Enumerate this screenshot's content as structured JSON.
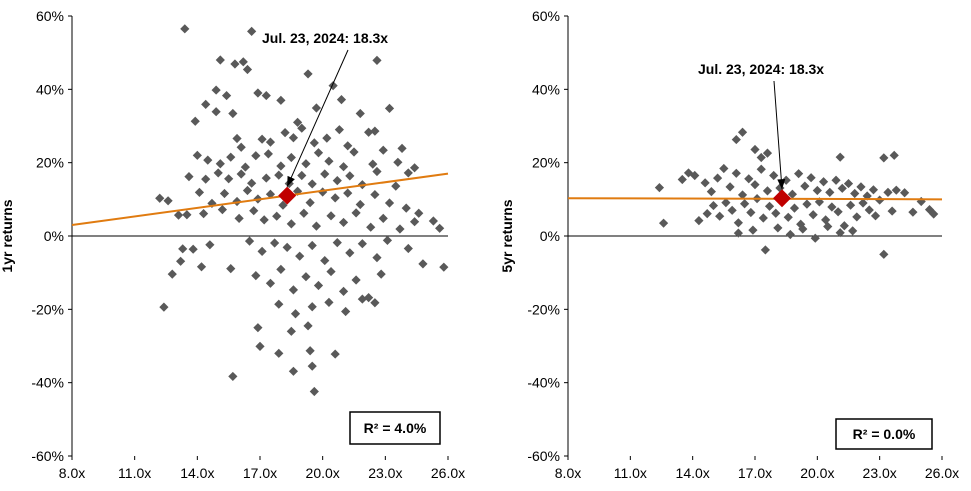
{
  "chart_data": [
    {
      "type": "scatter",
      "ylabel": "1yr returns",
      "x_ticks": [
        "8.0x",
        "11.0x",
        "14.0x",
        "17.0x",
        "20.0x",
        "23.0x",
        "26.0x"
      ],
      "y_ticks": [
        "60%",
        "40%",
        "20%",
        "0%",
        "-20%",
        "-40%",
        "-60%"
      ],
      "xlim": [
        8,
        26
      ],
      "ylim": [
        -60,
        60
      ],
      "grid": false,
      "annotation": {
        "text": "Jul. 23, 2024: 18.3x",
        "x": 18.3,
        "y": 11
      },
      "r_squared_label": "R² = 4.0%",
      "trendline": [
        [
          8,
          3.0
        ],
        [
          26,
          17.0
        ]
      ],
      "colors": {
        "points": "#595959",
        "highlight": "#c00000",
        "trendline": "#e07b10"
      },
      "points": [
        [
          13.4,
          56.5
        ],
        [
          16.6,
          55.8
        ],
        [
          15.1,
          48
        ],
        [
          15.8,
          46.9
        ],
        [
          16.2,
          47.5
        ],
        [
          16.4,
          45.4
        ],
        [
          19.3,
          44.2
        ],
        [
          22.6,
          47.9
        ],
        [
          20.5,
          41
        ],
        [
          14.9,
          39.8
        ],
        [
          15.4,
          38.3
        ],
        [
          14.4,
          35.9
        ],
        [
          14.9,
          33.9
        ],
        [
          13.9,
          31.3
        ],
        [
          15.7,
          33.4
        ],
        [
          16.9,
          39
        ],
        [
          17.3,
          38.3
        ],
        [
          18.0,
          37.0
        ],
        [
          18.8,
          31.0
        ],
        [
          19.7,
          34.9
        ],
        [
          20.9,
          37.2
        ],
        [
          21.8,
          33.4
        ],
        [
          23.2,
          34.8
        ],
        [
          23.8,
          23.9
        ],
        [
          22.5,
          28.6
        ],
        [
          15.9,
          26.6
        ],
        [
          16.1,
          24.2
        ],
        [
          17.1,
          26.4
        ],
        [
          17.5,
          25.6
        ],
        [
          18.2,
          28.2
        ],
        [
          18.6,
          26.8
        ],
        [
          19.0,
          29.4
        ],
        [
          19.6,
          25.4
        ],
        [
          20.2,
          26.7
        ],
        [
          20.8,
          29.0
        ],
        [
          21.2,
          24.6
        ],
        [
          22.2,
          28.3
        ],
        [
          22.9,
          23.4
        ],
        [
          14.0,
          22.0
        ],
        [
          14.5,
          20.7
        ],
        [
          15.1,
          19.7
        ],
        [
          15.6,
          21.5
        ],
        [
          16.3,
          18.8
        ],
        [
          16.8,
          21.9
        ],
        [
          17.4,
          22.4
        ],
        [
          18.0,
          19.1
        ],
        [
          18.5,
          21.4
        ],
        [
          19.2,
          19.7
        ],
        [
          19.8,
          22.7
        ],
        [
          20.3,
          20.4
        ],
        [
          21.0,
          18.9
        ],
        [
          21.5,
          22.9
        ],
        [
          22.4,
          19.6
        ],
        [
          23.6,
          20.1
        ],
        [
          24.4,
          18.6
        ],
        [
          13.6,
          16.2
        ],
        [
          14.4,
          15.5
        ],
        [
          15.0,
          17.2
        ],
        [
          15.5,
          15.6
        ],
        [
          16.1,
          16.9
        ],
        [
          16.6,
          14.4
        ],
        [
          17.3,
          15.8
        ],
        [
          17.9,
          16.6
        ],
        [
          18.4,
          14.3
        ],
        [
          19.0,
          16.5
        ],
        [
          19.5,
          14.2
        ],
        [
          20.1,
          16.9
        ],
        [
          20.7,
          15.1
        ],
        [
          21.3,
          16.4
        ],
        [
          21.9,
          14.0
        ],
        [
          22.6,
          17.6
        ],
        [
          23.5,
          13.6
        ],
        [
          24.1,
          17.2
        ],
        [
          12.2,
          10.3
        ],
        [
          12.6,
          9.6
        ],
        [
          13.1,
          5.7
        ],
        [
          13.5,
          5.8
        ],
        [
          14.1,
          11.9
        ],
        [
          14.7,
          8.9
        ],
        [
          15.3,
          11.6
        ],
        [
          15.9,
          9.4
        ],
        [
          16.4,
          12.4
        ],
        [
          16.9,
          10.1
        ],
        [
          17.5,
          11.4
        ],
        [
          18.1,
          8.4
        ],
        [
          18.8,
          12.2
        ],
        [
          19.4,
          9.1
        ],
        [
          20.0,
          12.0
        ],
        [
          20.6,
          10.4
        ],
        [
          21.2,
          11.7
        ],
        [
          21.8,
          8.6
        ],
        [
          22.5,
          11.3
        ],
        [
          23.2,
          9.0
        ],
        [
          24.0,
          7.6
        ],
        [
          24.6,
          6.2
        ],
        [
          25.3,
          4.1
        ],
        [
          14.3,
          6.1
        ],
        [
          15.2,
          7.2
        ],
        [
          16.0,
          4.8
        ],
        [
          16.7,
          6.9
        ],
        [
          17.2,
          4.4
        ],
        [
          17.8,
          5.4
        ],
        [
          18.5,
          3.3
        ],
        [
          19.1,
          6.2
        ],
        [
          19.7,
          2.7
        ],
        [
          20.4,
          5.5
        ],
        [
          21.0,
          3.7
        ],
        [
          21.6,
          6.3
        ],
        [
          22.3,
          2.4
        ],
        [
          22.9,
          4.8
        ],
        [
          23.7,
          1.9
        ],
        [
          24.4,
          3.9
        ],
        [
          25.6,
          2.1
        ],
        [
          13.8,
          -3.6
        ],
        [
          14.6,
          -2.4
        ],
        [
          15.6,
          -8.9
        ],
        [
          16.5,
          -1.4
        ],
        [
          17.1,
          -4.2
        ],
        [
          17.7,
          -1.9
        ],
        [
          18.3,
          -3.1
        ],
        [
          18.9,
          -5.5
        ],
        [
          19.5,
          -2.6
        ],
        [
          20.1,
          -6.7
        ],
        [
          20.7,
          -1.8
        ],
        [
          21.3,
          -4.6
        ],
        [
          21.9,
          -2.1
        ],
        [
          22.6,
          -5.9
        ],
        [
          23.1,
          -1.2
        ],
        [
          24.1,
          -3.4
        ],
        [
          24.8,
          -7.6
        ],
        [
          25.8,
          -8.5
        ],
        [
          12.8,
          -10.4
        ],
        [
          13.3,
          -3.5
        ],
        [
          13.2,
          -6.9
        ],
        [
          14.2,
          -8.4
        ],
        [
          16.8,
          -10.8
        ],
        [
          17.5,
          -12.9
        ],
        [
          18.0,
          -9.1
        ],
        [
          18.6,
          -14.7
        ],
        [
          19.2,
          -11.1
        ],
        [
          19.8,
          -13.5
        ],
        [
          20.4,
          -9.7
        ],
        [
          21.0,
          -15.1
        ],
        [
          21.6,
          -12.0
        ],
        [
          22.2,
          -16.8
        ],
        [
          22.8,
          -10.4
        ],
        [
          12.4,
          -19.4
        ],
        [
          17.9,
          -18.6
        ],
        [
          18.7,
          -21.2
        ],
        [
          19.5,
          -19.3
        ],
        [
          20.3,
          -18.1
        ],
        [
          21.1,
          -20.6
        ],
        [
          21.9,
          -17.2
        ],
        [
          22.5,
          -18.2
        ],
        [
          16.9,
          -25.0
        ],
        [
          18.5,
          -26.0
        ],
        [
          19.3,
          -24.5
        ],
        [
          17.0,
          -30.1
        ],
        [
          17.9,
          -32.0
        ],
        [
          19.4,
          -31.3
        ],
        [
          20.6,
          -32.2
        ],
        [
          15.7,
          -38.3
        ],
        [
          18.6,
          -36.9
        ],
        [
          19.5,
          -35.5
        ],
        [
          19.6,
          -42.4
        ]
      ],
      "highlight": {
        "x": 18.3,
        "y": 11
      }
    },
    {
      "type": "scatter",
      "ylabel": "5yr returns",
      "x_ticks": [
        "8.0x",
        "11.0x",
        "14.0x",
        "17.0x",
        "20.0x",
        "23.0x",
        "26.0x"
      ],
      "y_ticks": [
        "60%",
        "40%",
        "20%",
        "0%",
        "-20%",
        "-40%",
        "-60%"
      ],
      "xlim": [
        8,
        26
      ],
      "ylim": [
        -60,
        60
      ],
      "grid": false,
      "annotation": {
        "text": "Jul. 23, 2024: 18.3x",
        "x": 18.3,
        "y": 10.3
      },
      "r_squared_label": "R² = 0.0%",
      "trendline": [
        [
          8,
          10.3
        ],
        [
          26,
          10.0
        ]
      ],
      "colors": {
        "points": "#595959",
        "highlight": "#c00000",
        "trendline": "#e07b10"
      },
      "points": [
        [
          16.4,
          28.3
        ],
        [
          16.1,
          26.3
        ],
        [
          17.0,
          23.6
        ],
        [
          17.6,
          22.6
        ],
        [
          17.3,
          21.4
        ],
        [
          21.1,
          21.5
        ],
        [
          23.2,
          21.3
        ],
        [
          23.7,
          22.0
        ],
        [
          12.4,
          13.2
        ],
        [
          12.6,
          3.5
        ],
        [
          13.5,
          15.4
        ],
        [
          13.8,
          17.2
        ],
        [
          14.1,
          16.5
        ],
        [
          14.6,
          14.5
        ],
        [
          14.9,
          12.1
        ],
        [
          15.2,
          15.8
        ],
        [
          15.5,
          18.4
        ],
        [
          15.8,
          13.4
        ],
        [
          16.1,
          17.1
        ],
        [
          16.4,
          11.2
        ],
        [
          16.7,
          15.6
        ],
        [
          17.0,
          14.0
        ],
        [
          17.3,
          18.2
        ],
        [
          17.6,
          12.3
        ],
        [
          17.9,
          16.5
        ],
        [
          18.2,
          13.1
        ],
        [
          18.5,
          15.2
        ],
        [
          18.8,
          11.4
        ],
        [
          19.1,
          17.0
        ],
        [
          19.4,
          13.6
        ],
        [
          19.7,
          15.9
        ],
        [
          20.0,
          12.4
        ],
        [
          20.3,
          14.8
        ],
        [
          20.6,
          11.9
        ],
        [
          20.9,
          15.2
        ],
        [
          21.2,
          13.0
        ],
        [
          21.5,
          14.3
        ],
        [
          21.8,
          11.6
        ],
        [
          22.1,
          13.4
        ],
        [
          22.4,
          10.9
        ],
        [
          22.7,
          12.6
        ],
        [
          23.0,
          9.8
        ],
        [
          23.4,
          11.9
        ],
        [
          23.8,
          12.5
        ],
        [
          24.2,
          11.8
        ],
        [
          24.6,
          6.5
        ],
        [
          25.0,
          9.4
        ],
        [
          25.4,
          7.2
        ],
        [
          25.6,
          6.0
        ],
        [
          14.3,
          4.2
        ],
        [
          14.7,
          6.1
        ],
        [
          15.0,
          8.3
        ],
        [
          15.3,
          5.4
        ],
        [
          15.6,
          9.1
        ],
        [
          15.9,
          7.0
        ],
        [
          16.2,
          3.6
        ],
        [
          16.5,
          8.8
        ],
        [
          16.8,
          6.4
        ],
        [
          17.1,
          10.2
        ],
        [
          17.4,
          4.9
        ],
        [
          17.7,
          8.1
        ],
        [
          18.0,
          6.2
        ],
        [
          18.3,
          9.5
        ],
        [
          18.6,
          5.1
        ],
        [
          18.9,
          7.6
        ],
        [
          19.2,
          3.2
        ],
        [
          19.5,
          8.7
        ],
        [
          19.8,
          5.8
        ],
        [
          20.1,
          9.3
        ],
        [
          20.4,
          4.4
        ],
        [
          20.7,
          7.9
        ],
        [
          21.0,
          6.6
        ],
        [
          21.3,
          2.8
        ],
        [
          21.6,
          8.4
        ],
        [
          21.9,
          5.2
        ],
        [
          22.2,
          9.0
        ],
        [
          22.5,
          7.1
        ],
        [
          22.8,
          5.5
        ],
        [
          23.6,
          6.8
        ],
        [
          16.2,
          0.8
        ],
        [
          16.9,
          1.6
        ],
        [
          17.5,
          -3.8
        ],
        [
          18.1,
          2.2
        ],
        [
          18.7,
          0.4
        ],
        [
          19.3,
          1.9
        ],
        [
          19.9,
          -0.6
        ],
        [
          20.5,
          2.6
        ],
        [
          21.1,
          0.9
        ],
        [
          21.7,
          1.4
        ],
        [
          23.2,
          -5.0
        ]
      ],
      "highlight": {
        "x": 18.3,
        "y": 10.3
      }
    }
  ]
}
